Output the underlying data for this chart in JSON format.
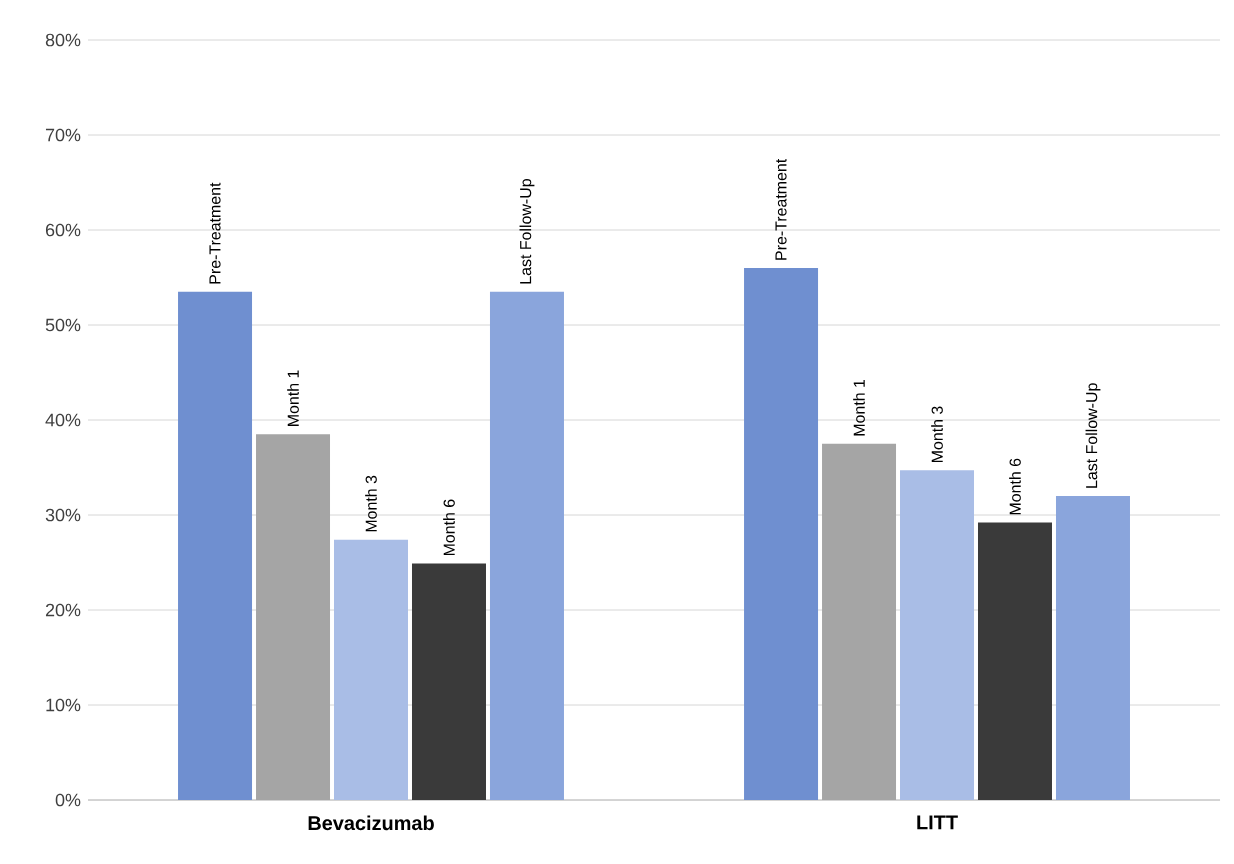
{
  "chart_data": {
    "type": "bar",
    "categories": [
      "Bevacizumab",
      "LITT"
    ],
    "series": [
      {
        "name": "Pre-Treatment",
        "color": "#6f8fd0",
        "values": [
          53.5,
          56
        ]
      },
      {
        "name": "Month 1",
        "color": "#a5a5a5",
        "values": [
          38.5,
          37.5
        ]
      },
      {
        "name": "Month 3",
        "color": "#a9bde6",
        "values": [
          27.4,
          34.7
        ]
      },
      {
        "name": "Month 6",
        "color": "#3a3a3a",
        "values": [
          24.9,
          29.2
        ]
      },
      {
        "name": "Last Follow-Up",
        "color": "#8aa5dc",
        "values": [
          53.5,
          32
        ]
      }
    ],
    "ylim": [
      0,
      80
    ],
    "yticks": [
      {
        "value": 0,
        "label": "0%"
      },
      {
        "value": 10,
        "label": "10%"
      },
      {
        "value": 20,
        "label": "20%"
      },
      {
        "value": 30,
        "label": "30%"
      },
      {
        "value": 40,
        "label": "40%"
      },
      {
        "value": 50,
        "label": "50%"
      },
      {
        "value": 60,
        "label": "60%"
      },
      {
        "value": 70,
        "label": "70%"
      },
      {
        "value": 80,
        "label": "80%"
      }
    ],
    "grid": "y"
  }
}
